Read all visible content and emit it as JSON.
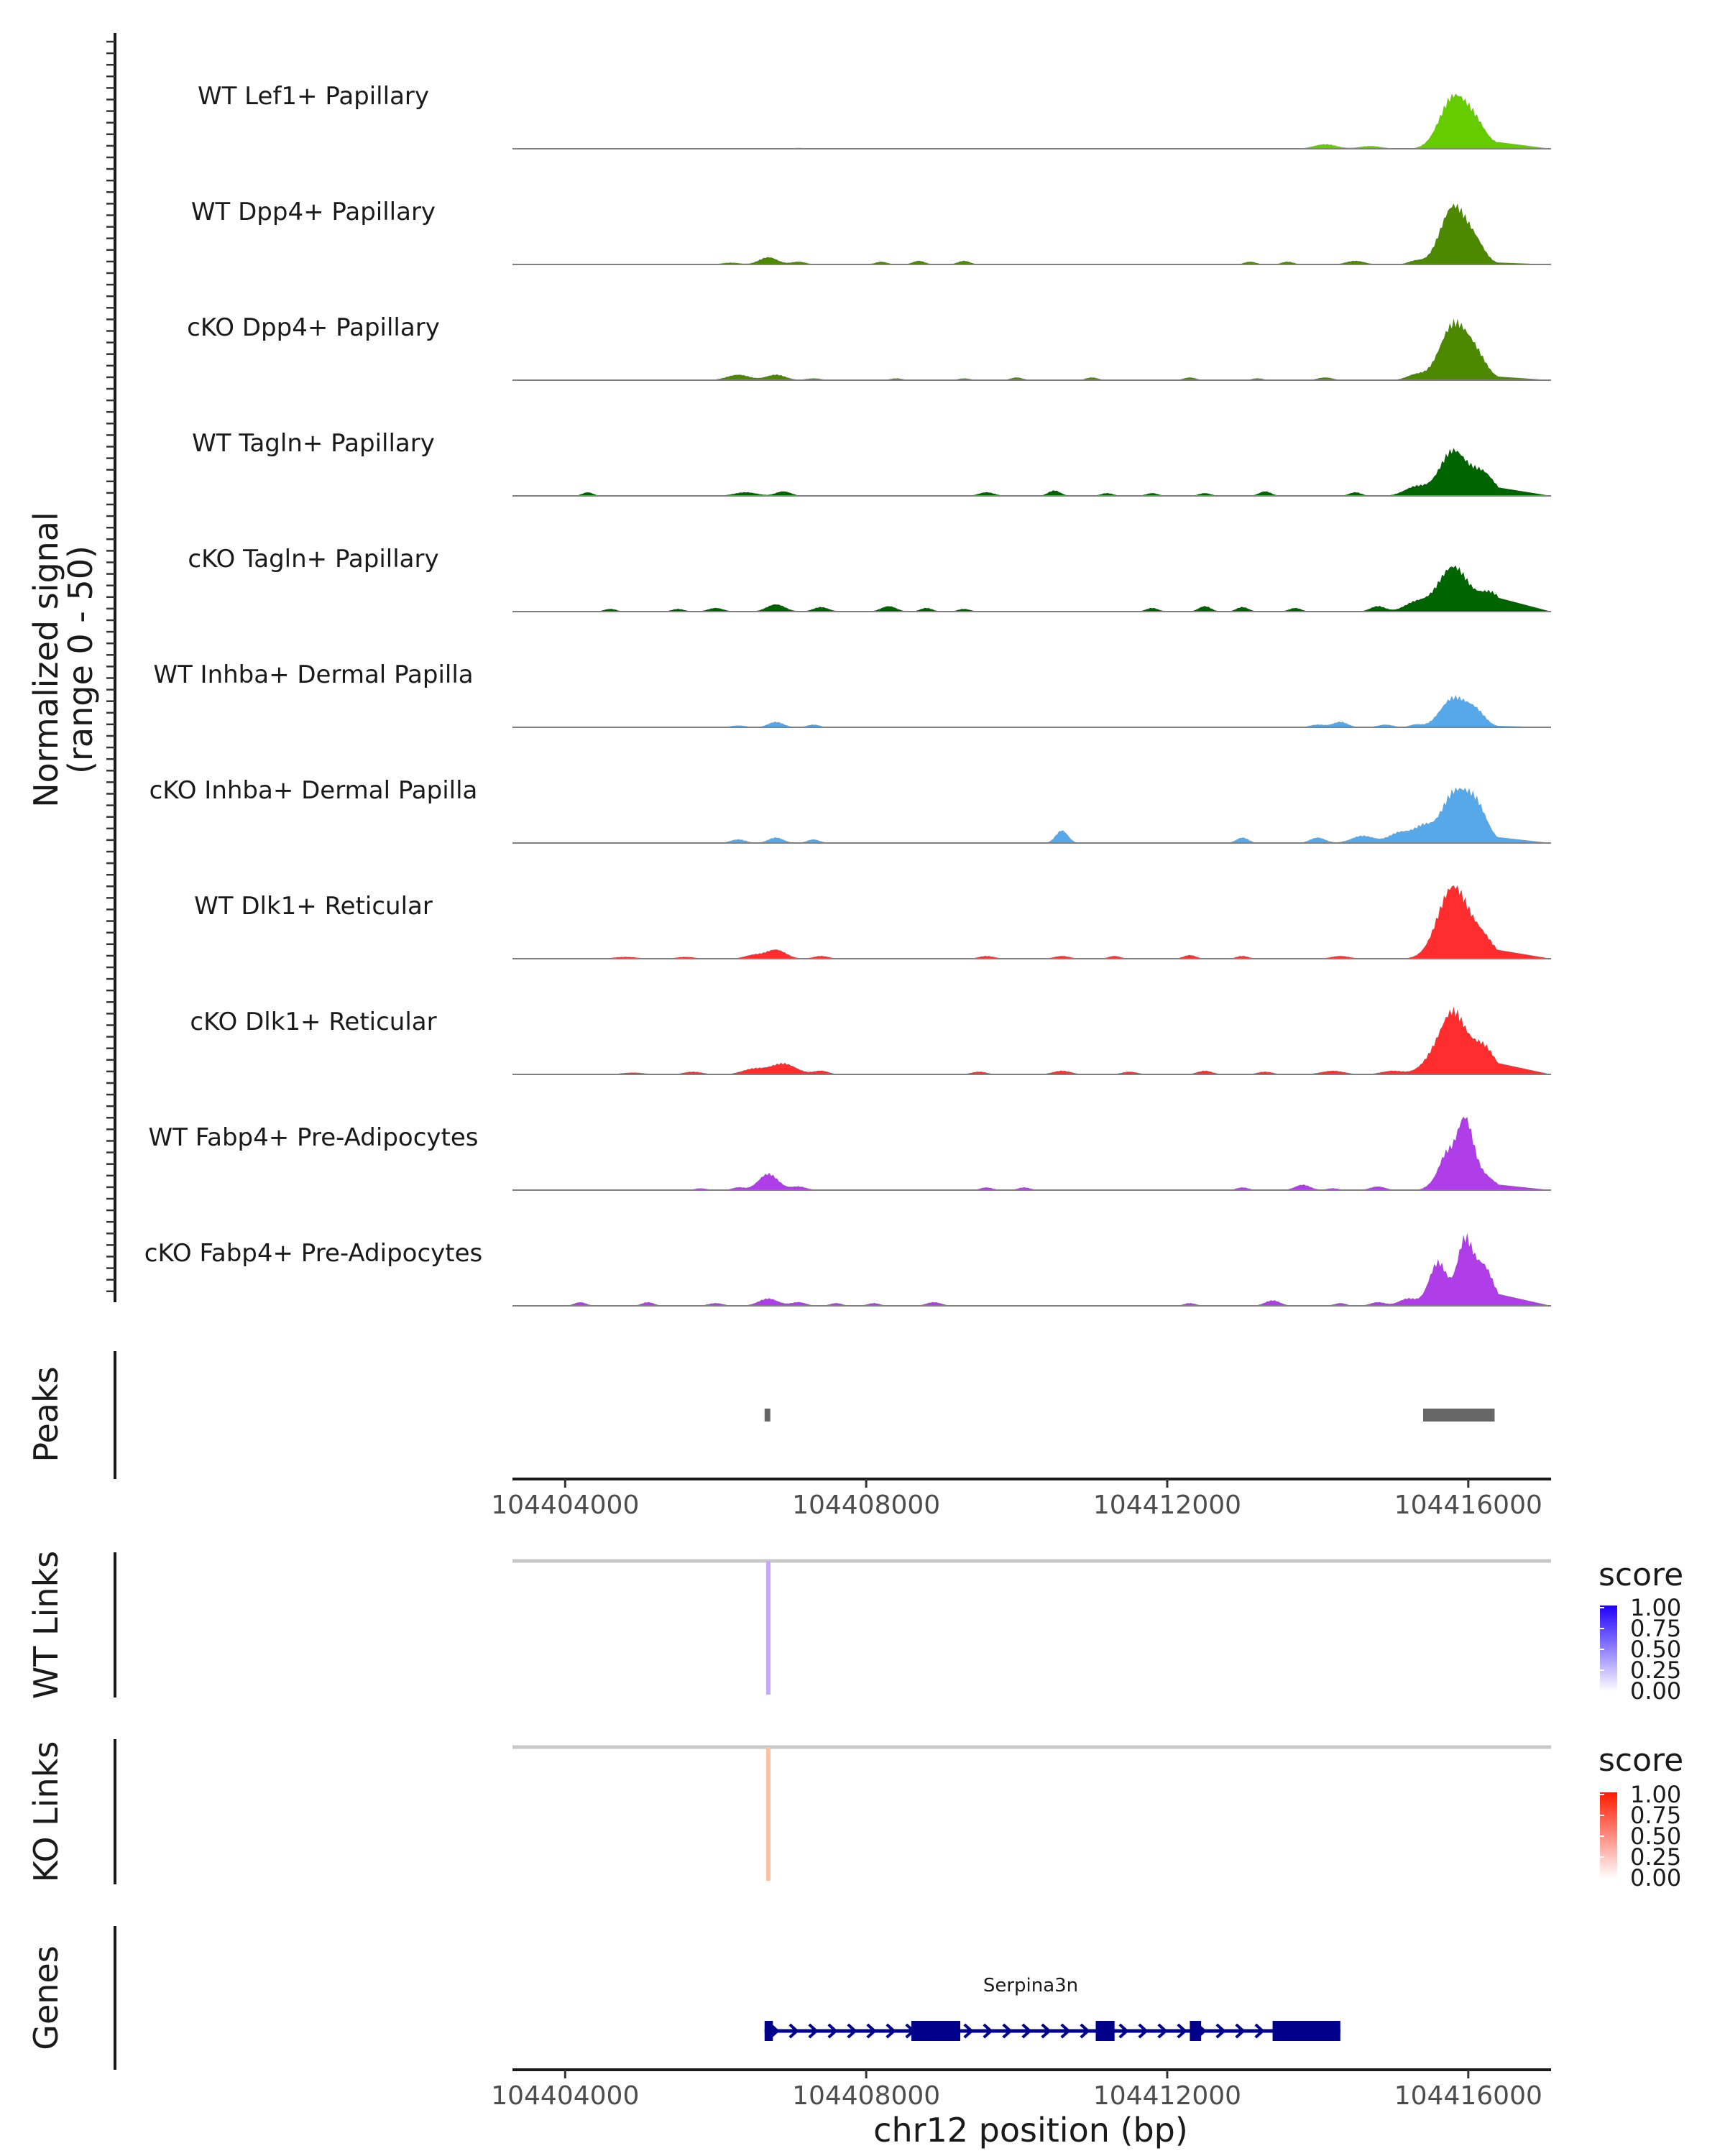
{
  "chart_data": {
    "type": "area",
    "title": "",
    "xlabel": "chr12 position (bp)",
    "ylabel": "Normalized signal",
    "ylabel_range": "(range 0 - 50)",
    "ylim": [
      0,
      50
    ],
    "xlim": [
      104403300,
      104417100
    ],
    "x_ticks": [
      104404000,
      104408000,
      104412000,
      104416000
    ],
    "x_tick_labels": [
      "104404000",
      "104408000",
      "104412000",
      "104416000"
    ],
    "coverage_tracks": [
      {
        "name": "WT Lef1+ Papillary",
        "color": "#66CC00",
        "peaks": [
          [
            104407100,
            0.5,
            80
          ],
          [
            104410300,
            0.4,
            80
          ],
          [
            104413000,
            0.4,
            80
          ],
          [
            104414100,
            2.5,
            150
          ],
          [
            104414700,
            1.5,
            150
          ],
          [
            104415800,
            28,
            180
          ],
          [
            104416100,
            12,
            150
          ],
          [
            104416500,
            2.5,
            120
          ]
        ]
      },
      {
        "name": "WT Dpp4+ Papillary",
        "color": "#4C8800",
        "peaks": [
          [
            104406200,
            1,
            120
          ],
          [
            104406700,
            4,
            120
          ],
          [
            104407100,
            1.5,
            100
          ],
          [
            104408200,
            1.5,
            80
          ],
          [
            104408700,
            2,
            80
          ],
          [
            104409300,
            2,
            80
          ],
          [
            104413100,
            1.5,
            80
          ],
          [
            104413600,
            1.5,
            80
          ],
          [
            104414500,
            2,
            120
          ],
          [
            104415300,
            2,
            100
          ],
          [
            104415800,
            32,
            170
          ],
          [
            104416100,
            10,
            130
          ],
          [
            104416600,
            2,
            100
          ]
        ]
      },
      {
        "name": "cKO Dpp4+ Papillary",
        "color": "#4C8800",
        "peaks": [
          [
            104406300,
            3,
            150
          ],
          [
            104406800,
            3,
            130
          ],
          [
            104407300,
            1,
            100
          ],
          [
            104408400,
            1,
            80
          ],
          [
            104409300,
            1,
            80
          ],
          [
            104410000,
            1.5,
            80
          ],
          [
            104411000,
            1.5,
            80
          ],
          [
            104412300,
            1.5,
            80
          ],
          [
            104413200,
            1,
            80
          ],
          [
            104414100,
            1.5,
            100
          ],
          [
            104415300,
            3,
            120
          ],
          [
            104415800,
            30,
            180
          ],
          [
            104416100,
            12,
            150
          ],
          [
            104416600,
            2,
            100
          ]
        ]
      },
      {
        "name": "WT Tagln+ Papillary",
        "color": "#006400",
        "peaks": [
          [
            104404300,
            2,
            70
          ],
          [
            104406400,
            2,
            150
          ],
          [
            104406900,
            2.5,
            100
          ],
          [
            104409600,
            2,
            100
          ],
          [
            104410500,
            3,
            80
          ],
          [
            104411200,
            1.5,
            80
          ],
          [
            104411800,
            1.5,
            80
          ],
          [
            104412500,
            1.5,
            80
          ],
          [
            104413300,
            2.5,
            80
          ],
          [
            104414500,
            2,
            80
          ],
          [
            104415300,
            5,
            150
          ],
          [
            104415800,
            25,
            180
          ],
          [
            104416200,
            12,
            150
          ]
        ]
      },
      {
        "name": "cKO Tagln+ Papillary",
        "color": "#006400",
        "peaks": [
          [
            104404600,
            1.5,
            80
          ],
          [
            104405500,
            1.5,
            80
          ],
          [
            104406000,
            2,
            100
          ],
          [
            104406800,
            4,
            120
          ],
          [
            104407400,
            2.5,
            100
          ],
          [
            104408300,
            3,
            100
          ],
          [
            104408800,
            2,
            80
          ],
          [
            104409300,
            1.5,
            80
          ],
          [
            104411800,
            2,
            80
          ],
          [
            104412500,
            3,
            80
          ],
          [
            104413000,
            2.5,
            80
          ],
          [
            104413700,
            2,
            80
          ],
          [
            104414800,
            3,
            100
          ],
          [
            104415300,
            5,
            150
          ],
          [
            104415800,
            25,
            200
          ],
          [
            104416300,
            10,
            150
          ]
        ]
      },
      {
        "name": "WT Inhba+ Dermal Papilla",
        "color": "#56A8E8",
        "peaks": [
          [
            104406300,
            1,
            100
          ],
          [
            104406800,
            3,
            100
          ],
          [
            104407300,
            1.5,
            80
          ],
          [
            104414000,
            1.5,
            100
          ],
          [
            104414300,
            3,
            100
          ],
          [
            104414900,
            1.5,
            100
          ],
          [
            104415300,
            1.5,
            80
          ],
          [
            104415800,
            16,
            170
          ],
          [
            104416100,
            8,
            130
          ],
          [
            104416600,
            1.5,
            100
          ]
        ]
      },
      {
        "name": "cKO Inhba+ Dermal Papilla",
        "color": "#56A8E8",
        "peaks": [
          [
            104406300,
            2,
            100
          ],
          [
            104406800,
            3,
            100
          ],
          [
            104407300,
            2,
            80
          ],
          [
            104410600,
            7,
            80
          ],
          [
            104413000,
            3,
            80
          ],
          [
            104414000,
            3,
            100
          ],
          [
            104414600,
            4,
            150
          ],
          [
            104415100,
            6,
            150
          ],
          [
            104415400,
            8,
            120
          ],
          [
            104415800,
            26,
            170
          ],
          [
            104416100,
            20,
            150
          ],
          [
            104416600,
            2,
            100
          ]
        ]
      },
      {
        "name": "WT Dlk1+ Reticular",
        "color": "#FF2D2D",
        "peaks": [
          [
            104404800,
            1,
            150
          ],
          [
            104405600,
            1,
            120
          ],
          [
            104406500,
            2,
            120
          ],
          [
            104406800,
            5,
            130
          ],
          [
            104407400,
            1.5,
            100
          ],
          [
            104409600,
            1.5,
            100
          ],
          [
            104410600,
            1.5,
            100
          ],
          [
            104411300,
            1.5,
            80
          ],
          [
            104412300,
            2,
            80
          ],
          [
            104413000,
            1.5,
            80
          ],
          [
            104414300,
            1.5,
            120
          ],
          [
            104415800,
            40,
            200
          ],
          [
            104416200,
            10,
            150
          ],
          [
            104416700,
            1.5,
            100
          ]
        ]
      },
      {
        "name": "cKO Dlk1+ Reticular",
        "color": "#FF2D2D",
        "peaks": [
          [
            104404900,
            1,
            150
          ],
          [
            104405700,
            1.5,
            120
          ],
          [
            104406500,
            3,
            150
          ],
          [
            104406900,
            6,
            170
          ],
          [
            104407400,
            2,
            100
          ],
          [
            104409500,
            1.5,
            100
          ],
          [
            104410600,
            2,
            120
          ],
          [
            104411500,
            1.5,
            100
          ],
          [
            104412500,
            2,
            100
          ],
          [
            104413300,
            1.5,
            100
          ],
          [
            104414200,
            2,
            150
          ],
          [
            104415000,
            2,
            150
          ],
          [
            104415500,
            6,
            150
          ],
          [
            104415800,
            34,
            170
          ],
          [
            104416200,
            15,
            150
          ],
          [
            104416700,
            2,
            100
          ]
        ]
      },
      {
        "name": "WT Fabp4+ Pre-Adipocytes",
        "color": "#B03EE8",
        "peaks": [
          [
            104405800,
            1,
            80
          ],
          [
            104406300,
            1.5,
            80
          ],
          [
            104406700,
            9,
            130
          ],
          [
            104407100,
            2,
            100
          ],
          [
            104409600,
            1.5,
            80
          ],
          [
            104410100,
            1.5,
            80
          ],
          [
            104413000,
            1.5,
            80
          ],
          [
            104413800,
            3,
            100
          ],
          [
            104414200,
            1,
            80
          ],
          [
            104414800,
            2,
            100
          ],
          [
            104415500,
            2,
            80
          ],
          [
            104415700,
            18,
            100
          ],
          [
            104415950,
            38,
            110
          ],
          [
            104416200,
            8,
            150
          ],
          [
            104416700,
            2,
            80
          ]
        ]
      },
      {
        "name": "cKO Fabp4+ Pre-Adipocytes",
        "color": "#B03EE8",
        "peaks": [
          [
            104404200,
            2,
            80
          ],
          [
            104405100,
            2,
            80
          ],
          [
            104406000,
            1.5,
            100
          ],
          [
            104406700,
            4,
            130
          ],
          [
            104407100,
            2,
            100
          ],
          [
            104407600,
            1.5,
            80
          ],
          [
            104408100,
            1.5,
            80
          ],
          [
            104408900,
            2,
            100
          ],
          [
            104412300,
            1.5,
            80
          ],
          [
            104413400,
            3,
            100
          ],
          [
            104414300,
            1.5,
            80
          ],
          [
            104414800,
            2,
            100
          ],
          [
            104415200,
            4,
            120
          ],
          [
            104415600,
            24,
            120
          ],
          [
            104415950,
            34,
            100
          ],
          [
            104416200,
            22,
            130
          ],
          [
            104416600,
            3,
            100
          ]
        ]
      }
    ],
    "peaks_track": {
      "title": "Peaks",
      "color": "#666666",
      "regions": [
        [
          104406650,
          104406700
        ],
        [
          104415400,
          104416350
        ]
      ]
    },
    "links_tracks": [
      {
        "title": "WT Links",
        "color": "#C3A8FF",
        "position": 104406700,
        "score_label": "score",
        "legend_colors": [
          "#ffffff",
          "#2000FF"
        ]
      },
      {
        "title": "KO Links",
        "color": "#FFBFA3",
        "position": 104406700,
        "score_label": "score",
        "legend_colors": [
          "#ffffff",
          "#FF1A00"
        ]
      }
    ],
    "legend_ticks": [
      "1.00",
      "0.75",
      "0.50",
      "0.25",
      "0.00"
    ],
    "genes_track": {
      "title": "Genes",
      "color": "#00008B",
      "gene": "Serpina3n",
      "start": 104406650,
      "end": 104414300,
      "exons": [
        [
          104406650,
          104406760
        ],
        [
          104408600,
          104409250
        ],
        [
          104411050,
          104411300
        ],
        [
          104412300,
          104412450
        ],
        [
          104413400,
          104414300
        ]
      ]
    }
  }
}
